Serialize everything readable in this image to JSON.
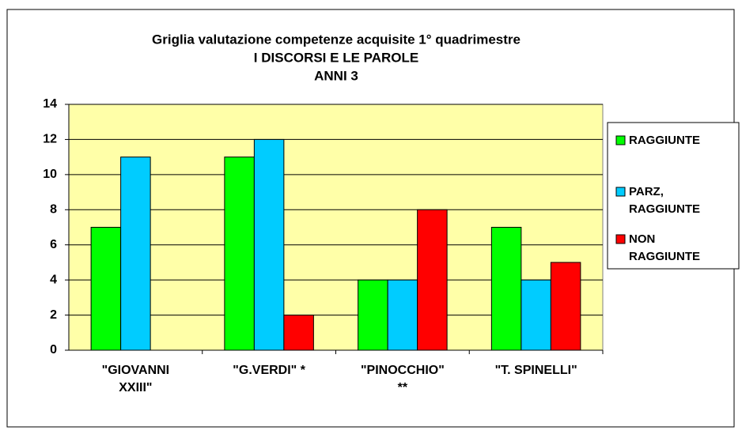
{
  "chart_data": {
    "type": "bar",
    "title": [
      "Griglia valutazione competenze acquisite 1° quadrimestre",
      "I DISCORSI E LE PAROLE",
      "ANNI 3"
    ],
    "categories": [
      [
        "\"GIOVANNI",
        "XXIII\""
      ],
      [
        "\"G.VERDI\" *"
      ],
      [
        "\"PINOCCHIO\"",
        "**"
      ],
      [
        "\"T. SPINELLI\""
      ]
    ],
    "series": [
      {
        "name": "RAGGIUNTE",
        "color": "#00ff00",
        "values": [
          7,
          11,
          4,
          7
        ]
      },
      {
        "name": "PARZ, RAGGIUNTE",
        "color": "#00ccff",
        "values": [
          11,
          12,
          4,
          4
        ]
      },
      {
        "name": "NON RAGGIUNTE",
        "color": "#ff0000",
        "values": [
          0,
          2,
          8,
          5
        ]
      }
    ],
    "ylim": [
      0,
      14
    ],
    "yticks": [
      0,
      2,
      4,
      6,
      8,
      10,
      12,
      14
    ],
    "grid": true,
    "legend": "right"
  }
}
